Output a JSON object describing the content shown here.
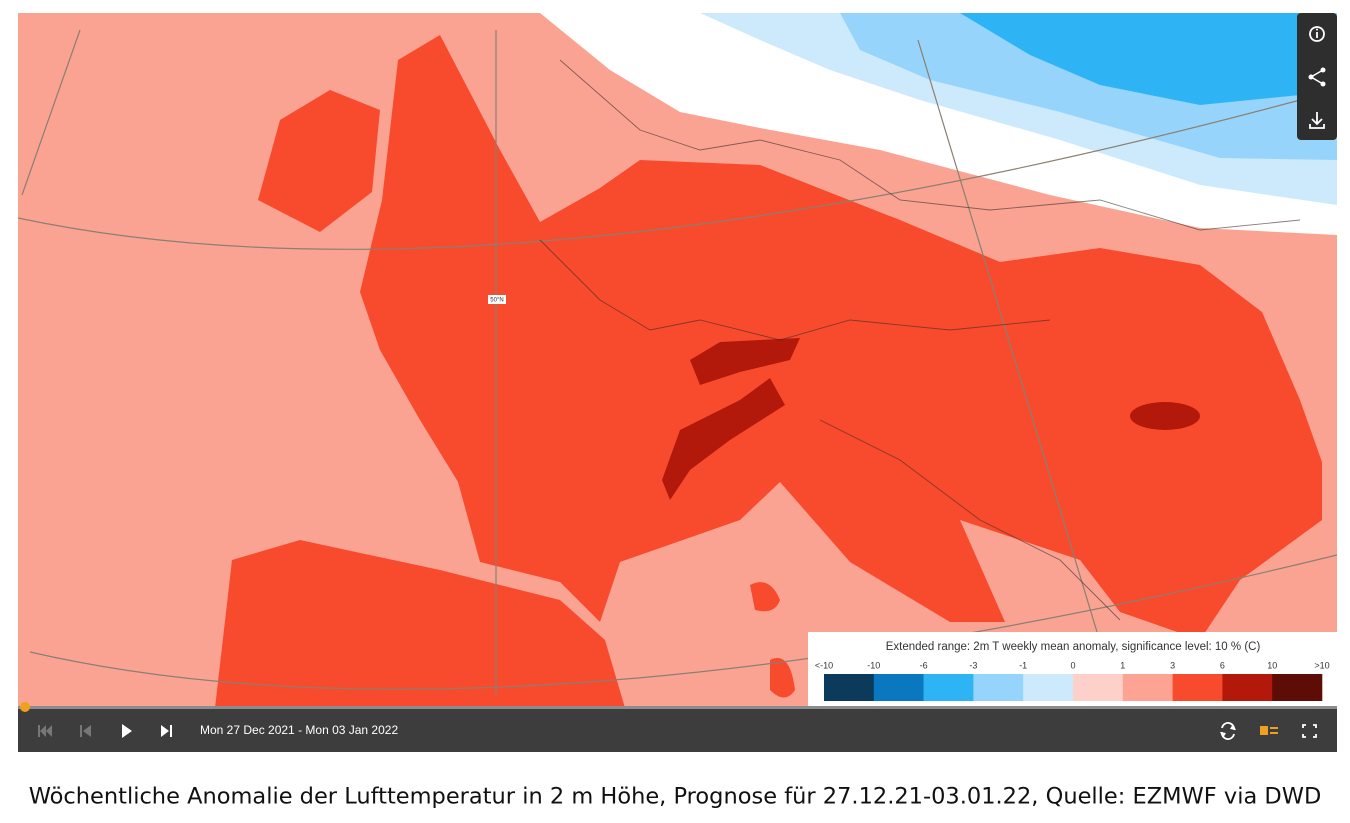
{
  "map": {
    "grid_label": "50°N",
    "legend": {
      "title": "Extended range: 2m T weekly mean anomaly, significance level: 10 % (C)",
      "labels": [
        "<-10",
        -10,
        -6,
        -3,
        -1,
        0,
        1,
        3,
        6,
        10,
        ">10"
      ],
      "colors": [
        "#0b3a5a",
        "#0a78be",
        "#2eb4f5",
        "#96d4fb",
        "#cdeafd",
        "#fdd0ca",
        "#fca394",
        "#f84b2e",
        "#b3190b",
        "#5d0d05"
      ]
    }
  },
  "controls": {
    "date_range": "Mon 27 Dec 2021 - Mon 03 Jan 2022"
  },
  "caption": "Wöchentliche Anomalie der Lufttemperatur in 2 m Höhe, Prognose für 27.12.21-03.01.22, Quelle: EZMWF via DWD"
}
